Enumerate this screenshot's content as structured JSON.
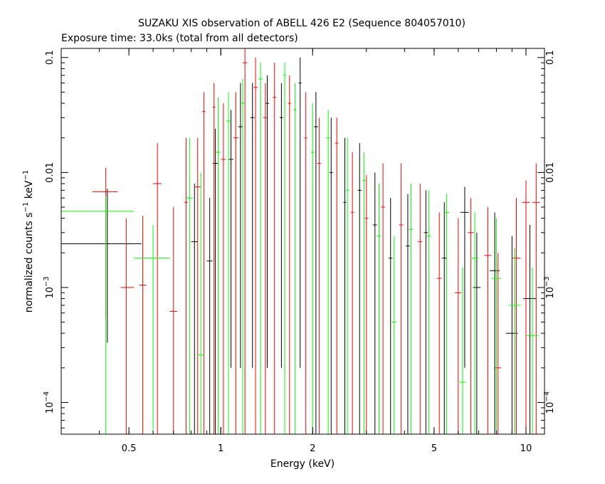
{
  "chart_data": {
    "type": "scatter",
    "title": "SUZAKU XIS observation of ABELL 426 E2 (Sequence 804057010)",
    "subtitle": "Exposure time: 33.0ks (total from all detectors)",
    "xlabel": "Energy (keV)",
    "ylabel_main": "normalized counts s",
    "ylabel_sup1": "−1",
    "ylabel_mid": " keV",
    "ylabel_sup2": "−1",
    "x_scale": "log",
    "y_scale": "log",
    "xlim": [
      0.3,
      11.5
    ],
    "ylim": [
      5.3e-05,
      0.12
    ],
    "grid": false,
    "x_ticks": [
      {
        "value": 0.5,
        "label": "0.5"
      },
      {
        "value": 1,
        "label": "1"
      },
      {
        "value": 2,
        "label": "2"
      },
      {
        "value": 5,
        "label": "5"
      },
      {
        "value": 10,
        "label": "10"
      }
    ],
    "y_ticks": [
      {
        "value": 0.1,
        "label": "0.1"
      },
      {
        "value": 0.01,
        "label": "0.01"
      },
      {
        "value": 0.001,
        "label": "10",
        "sup": "−3"
      },
      {
        "value": 0.0001,
        "label": "10",
        "sup": "−4"
      }
    ],
    "series": [
      {
        "color": "#000000",
        "points": [
          {
            "x": 0.425,
            "y": 0.0024,
            "xlo": 0.3,
            "xhi": 0.55,
            "ylo": 0.00033,
            "yhi": 0.0072
          },
          {
            "x": 0.82,
            "y": 0.0025,
            "xlo": 0.8,
            "xhi": 0.84,
            "ylo": 5.3e-05,
            "yhi": 0.008
          },
          {
            "x": 0.92,
            "y": 0.0017,
            "xlo": 0.9,
            "xhi": 0.94,
            "ylo": 5.3e-05,
            "yhi": 0.006
          },
          {
            "x": 0.96,
            "y": 0.012,
            "xlo": 0.94,
            "xhi": 0.98,
            "ylo": 5.3e-05,
            "yhi": 0.024
          },
          {
            "x": 1.08,
            "y": 0.013,
            "xlo": 1.06,
            "xhi": 1.1,
            "ylo": 0.0002,
            "yhi": 0.035
          },
          {
            "x": 1.16,
            "y": 0.025,
            "xlo": 1.14,
            "xhi": 1.18,
            "ylo": 0.0002,
            "yhi": 0.06
          },
          {
            "x": 1.27,
            "y": 0.03,
            "xlo": 1.25,
            "xhi": 1.29,
            "ylo": 0.0002,
            "yhi": 0.06
          },
          {
            "x": 1.42,
            "y": 0.04,
            "xlo": 1.4,
            "xhi": 1.44,
            "ylo": 0.0002,
            "yhi": 0.07
          },
          {
            "x": 1.58,
            "y": 0.03,
            "xlo": 1.56,
            "xhi": 1.6,
            "ylo": 0.0002,
            "yhi": 0.06
          },
          {
            "x": 1.82,
            "y": 0.06,
            "xlo": 1.8,
            "xhi": 1.84,
            "ylo": 0.0002,
            "yhi": 0.1
          },
          {
            "x": 2.05,
            "y": 0.025,
            "xlo": 2.02,
            "xhi": 2.08,
            "ylo": 5.3e-05,
            "yhi": 0.05
          },
          {
            "x": 2.3,
            "y": 0.01,
            "xlo": 2.27,
            "xhi": 2.33,
            "ylo": 5.3e-05,
            "yhi": 0.03
          },
          {
            "x": 2.55,
            "y": 0.0055,
            "xlo": 2.52,
            "xhi": 2.58,
            "ylo": 5.3e-05,
            "yhi": 0.02
          },
          {
            "x": 2.85,
            "y": 0.007,
            "xlo": 2.81,
            "xhi": 2.89,
            "ylo": 5.3e-05,
            "yhi": 0.018
          },
          {
            "x": 3.2,
            "y": 0.0035,
            "xlo": 3.15,
            "xhi": 3.25,
            "ylo": 5.3e-05,
            "yhi": 0.01
          },
          {
            "x": 3.6,
            "y": 0.0018,
            "xlo": 3.55,
            "xhi": 3.65,
            "ylo": 5.3e-05,
            "yhi": 0.006
          },
          {
            "x": 4.1,
            "y": 0.0023,
            "xlo": 4.04,
            "xhi": 4.16,
            "ylo": 5.3e-05,
            "yhi": 0.0065
          },
          {
            "x": 4.7,
            "y": 0.003,
            "xlo": 4.63,
            "xhi": 4.77,
            "ylo": 5.3e-05,
            "yhi": 0.007
          },
          {
            "x": 5.4,
            "y": 0.0018,
            "xlo": 5.3,
            "xhi": 5.5,
            "ylo": 5.3e-05,
            "yhi": 0.0055
          },
          {
            "x": 6.3,
            "y": 0.0045,
            "xlo": 6.1,
            "xhi": 6.5,
            "ylo": 0.0002,
            "yhi": 0.0075
          },
          {
            "x": 6.9,
            "y": 0.001,
            "xlo": 6.7,
            "xhi": 7.1,
            "ylo": 5.3e-05,
            "yhi": 0.003
          },
          {
            "x": 7.9,
            "y": 0.0014,
            "xlo": 7.6,
            "xhi": 8.2,
            "ylo": 5.3e-05,
            "yhi": 0.0045
          },
          {
            "x": 9.0,
            "y": 0.0004,
            "xlo": 8.6,
            "xhi": 9.4,
            "ylo": 5.3e-05,
            "yhi": 0.0028
          },
          {
            "x": 10.3,
            "y": 0.0008,
            "xlo": 9.8,
            "xhi": 10.8,
            "ylo": 5.3e-05,
            "yhi": 0.0035
          }
        ]
      },
      {
        "color": "#ff0000",
        "points": [
          {
            "x": 0.42,
            "y": 0.0068,
            "xlo": 0.38,
            "xhi": 0.46,
            "ylo": 0.00055,
            "yhi": 0.011
          },
          {
            "x": 0.49,
            "y": 0.001,
            "xlo": 0.47,
            "xhi": 0.52,
            "ylo": 5.3e-05,
            "yhi": 0.004
          },
          {
            "x": 0.555,
            "y": 0.00105,
            "xlo": 0.54,
            "xhi": 0.57,
            "ylo": 5.3e-05,
            "yhi": 0.0042
          },
          {
            "x": 0.62,
            "y": 0.008,
            "xlo": 0.6,
            "xhi": 0.64,
            "ylo": 5.3e-05,
            "yhi": 0.018
          },
          {
            "x": 0.7,
            "y": 0.00062,
            "xlo": 0.68,
            "xhi": 0.72,
            "ylo": 5.3e-05,
            "yhi": 0.005
          },
          {
            "x": 0.77,
            "y": 0.0055,
            "xlo": 0.76,
            "xhi": 0.78,
            "ylo": 5.3e-05,
            "yhi": 0.02
          },
          {
            "x": 0.84,
            "y": 0.0075,
            "xlo": 0.82,
            "xhi": 0.86,
            "ylo": 5.3e-05,
            "yhi": 0.02
          },
          {
            "x": 0.88,
            "y": 0.034,
            "xlo": 0.87,
            "xhi": 0.89,
            "ylo": 5.3e-05,
            "yhi": 0.05
          },
          {
            "x": 0.95,
            "y": 0.037,
            "xlo": 0.94,
            "xhi": 0.96,
            "ylo": 5.3e-05,
            "yhi": 0.06
          },
          {
            "x": 1.02,
            "y": 0.013,
            "xlo": 1.0,
            "xhi": 1.04,
            "ylo": 5.3e-05,
            "yhi": 0.04
          },
          {
            "x": 1.12,
            "y": 0.02,
            "xlo": 1.1,
            "xhi": 1.14,
            "ylo": 5.3e-05,
            "yhi": 0.05
          },
          {
            "x": 1.2,
            "y": 0.09,
            "xlo": 1.18,
            "xhi": 1.22,
            "ylo": 5.3e-05,
            "yhi": 0.12
          },
          {
            "x": 1.3,
            "y": 0.055,
            "xlo": 1.28,
            "xhi": 1.32,
            "ylo": 5.3e-05,
            "yhi": 0.1
          },
          {
            "x": 1.4,
            "y": 0.03,
            "xlo": 1.38,
            "xhi": 1.42,
            "ylo": 5.3e-05,
            "yhi": 0.06
          },
          {
            "x": 1.5,
            "y": 0.045,
            "xlo": 1.48,
            "xhi": 1.52,
            "ylo": 5.3e-05,
            "yhi": 0.09
          },
          {
            "x": 1.68,
            "y": 0.04,
            "xlo": 1.66,
            "xhi": 1.7,
            "ylo": 5.3e-05,
            "yhi": 0.07
          },
          {
            "x": 1.9,
            "y": 0.02,
            "xlo": 1.88,
            "xhi": 1.92,
            "ylo": 5.3e-05,
            "yhi": 0.05
          },
          {
            "x": 2.1,
            "y": 0.012,
            "xlo": 2.07,
            "xhi": 2.13,
            "ylo": 5.3e-05,
            "yhi": 0.03
          },
          {
            "x": 2.4,
            "y": 0.018,
            "xlo": 2.37,
            "xhi": 2.43,
            "ylo": 5.3e-05,
            "yhi": 0.03
          },
          {
            "x": 2.7,
            "y": 0.0045,
            "xlo": 2.67,
            "xhi": 2.73,
            "ylo": 5.3e-05,
            "yhi": 0.015
          },
          {
            "x": 3.0,
            "y": 0.004,
            "xlo": 2.96,
            "xhi": 3.04,
            "ylo": 5.3e-05,
            "yhi": 0.0095
          },
          {
            "x": 3.4,
            "y": 0.005,
            "xlo": 3.35,
            "xhi": 3.45,
            "ylo": 5.3e-05,
            "yhi": 0.012
          },
          {
            "x": 3.9,
            "y": 0.0035,
            "xlo": 3.84,
            "xhi": 3.96,
            "ylo": 5.3e-05,
            "yhi": 0.012
          },
          {
            "x": 4.5,
            "y": 0.0025,
            "xlo": 4.43,
            "xhi": 4.57,
            "ylo": 5.3e-05,
            "yhi": 0.008
          },
          {
            "x": 5.2,
            "y": 0.0012,
            "xlo": 5.1,
            "xhi": 5.3,
            "ylo": 5.3e-05,
            "yhi": 0.0045
          },
          {
            "x": 6.0,
            "y": 0.0009,
            "xlo": 5.85,
            "xhi": 6.15,
            "ylo": 5.3e-05,
            "yhi": 0.004
          },
          {
            "x": 6.6,
            "y": 0.003,
            "xlo": 6.45,
            "xhi": 6.75,
            "ylo": 5.3e-05,
            "yhi": 0.006
          },
          {
            "x": 7.5,
            "y": 0.0019,
            "xlo": 7.3,
            "xhi": 7.7,
            "ylo": 5.3e-05,
            "yhi": 0.005
          },
          {
            "x": 8.1,
            "y": 0.0002,
            "xlo": 7.9,
            "xhi": 8.3,
            "ylo": 5.3e-05,
            "yhi": 0.002
          },
          {
            "x": 9.3,
            "y": 0.0018,
            "xlo": 9.0,
            "xhi": 9.6,
            "ylo": 5.3e-05,
            "yhi": 0.006
          },
          {
            "x": 10.0,
            "y": 0.0055,
            "xlo": 9.7,
            "xhi": 10.3,
            "ylo": 5.3e-05,
            "yhi": 0.0085
          },
          {
            "x": 10.8,
            "y": 0.0055,
            "xlo": 10.5,
            "xhi": 11.1,
            "ylo": 5.3e-05,
            "yhi": 0.012
          }
        ]
      },
      {
        "color": "#00ff00",
        "points": [
          {
            "x": 0.42,
            "y": 0.0046,
            "xlo": 0.3,
            "xhi": 0.52,
            "ylo": 5.3e-05,
            "yhi": 0.0062
          },
          {
            "x": 0.6,
            "y": 0.0018,
            "xlo": 0.52,
            "xhi": 0.68,
            "ylo": 5.3e-05,
            "yhi": 0.0035
          },
          {
            "x": 0.79,
            "y": 0.006,
            "xlo": 0.77,
            "xhi": 0.81,
            "ylo": 5.3e-05,
            "yhi": 0.02
          },
          {
            "x": 0.86,
            "y": 0.00026,
            "xlo": 0.84,
            "xhi": 0.88,
            "ylo": 5.3e-05,
            "yhi": 0.01
          },
          {
            "x": 0.98,
            "y": 0.015,
            "xlo": 0.96,
            "xhi": 1.0,
            "ylo": 5.3e-05,
            "yhi": 0.045
          },
          {
            "x": 1.06,
            "y": 0.028,
            "xlo": 1.04,
            "xhi": 1.08,
            "ylo": 5.3e-05,
            "yhi": 0.05
          },
          {
            "x": 1.18,
            "y": 0.04,
            "xlo": 1.16,
            "xhi": 1.2,
            "ylo": 5.3e-05,
            "yhi": 0.065
          },
          {
            "x": 1.35,
            "y": 0.065,
            "xlo": 1.33,
            "xhi": 1.37,
            "ylo": 5.3e-05,
            "yhi": 0.09
          },
          {
            "x": 1.62,
            "y": 0.07,
            "xlo": 1.6,
            "xhi": 1.64,
            "ylo": 5.3e-05,
            "yhi": 0.09
          },
          {
            "x": 1.75,
            "y": 0.035,
            "xlo": 1.73,
            "xhi": 1.77,
            "ylo": 5.3e-05,
            "yhi": 0.06
          },
          {
            "x": 2.0,
            "y": 0.015,
            "xlo": 1.97,
            "xhi": 2.03,
            "ylo": 5.3e-05,
            "yhi": 0.04
          },
          {
            "x": 2.25,
            "y": 0.02,
            "xlo": 2.22,
            "xhi": 2.28,
            "ylo": 5.3e-05,
            "yhi": 0.035
          },
          {
            "x": 2.6,
            "y": 0.007,
            "xlo": 2.57,
            "xhi": 2.63,
            "ylo": 5.3e-05,
            "yhi": 0.02
          },
          {
            "x": 2.95,
            "y": 0.0085,
            "xlo": 2.91,
            "xhi": 2.99,
            "ylo": 5.3e-05,
            "yhi": 0.015
          },
          {
            "x": 3.3,
            "y": 0.0028,
            "xlo": 3.25,
            "xhi": 3.35,
            "ylo": 5.3e-05,
            "yhi": 0.008
          },
          {
            "x": 3.7,
            "y": 0.0005,
            "xlo": 3.64,
            "xhi": 3.76,
            "ylo": 5.3e-05,
            "yhi": 0.0028
          },
          {
            "x": 4.2,
            "y": 0.0032,
            "xlo": 4.13,
            "xhi": 4.27,
            "ylo": 5.3e-05,
            "yhi": 0.008
          },
          {
            "x": 4.8,
            "y": 0.0028,
            "xlo": 4.72,
            "xhi": 4.88,
            "ylo": 5.3e-05,
            "yhi": 0.007
          },
          {
            "x": 5.5,
            "y": 0.0045,
            "xlo": 5.4,
            "xhi": 5.6,
            "ylo": 5.3e-05,
            "yhi": 0.0065
          },
          {
            "x": 6.2,
            "y": 0.00015,
            "xlo": 6.05,
            "xhi": 6.35,
            "ylo": 5.3e-05,
            "yhi": 0.0015
          },
          {
            "x": 6.8,
            "y": 0.0018,
            "xlo": 6.6,
            "xhi": 7.0,
            "ylo": 5.3e-05,
            "yhi": 0.0045
          },
          {
            "x": 8.0,
            "y": 0.0012,
            "xlo": 7.7,
            "xhi": 8.3,
            "ylo": 5.3e-05,
            "yhi": 0.004
          },
          {
            "x": 9.2,
            "y": 0.0007,
            "xlo": 8.8,
            "xhi": 9.6,
            "ylo": 5.3e-05,
            "yhi": 0.0022
          },
          {
            "x": 10.5,
            "y": 0.00038,
            "xlo": 10.0,
            "xhi": 11.0,
            "ylo": 5.3e-05,
            "yhi": 0.0015
          }
        ]
      }
    ]
  }
}
